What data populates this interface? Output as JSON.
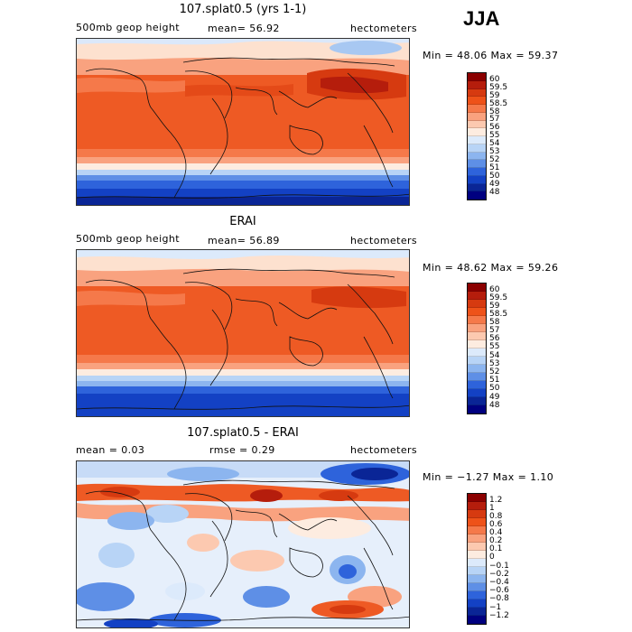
{
  "season": "JJA",
  "panels": [
    {
      "title": "107.splat0.5 (yrs 1-1)",
      "left_label": "500mb geop height",
      "center_label": "mean=   56.92",
      "units": "hectometers",
      "minmax": "Min =  48.06 Max =  59.37",
      "levels": [
        "60",
        "59.5",
        "59",
        "58.5",
        "58",
        "57",
        "56",
        "55",
        "54",
        "53",
        "52",
        "51",
        "50",
        "49",
        "48"
      ],
      "colors": [
        "#8b0000",
        "#b51d0c",
        "#d63a10",
        "#ee5219",
        "#f5794a",
        "#f9a27f",
        "#fcc9b0",
        "#fdece0",
        "#dceafb",
        "#b8d4f6",
        "#8cb5ef",
        "#5e8fe6",
        "#2e63db",
        "#1341c4",
        "#0a2596",
        "#000080"
      ]
    },
    {
      "title": "ERAI",
      "left_label": "500mb geop height",
      "center_label": "mean=   56.89",
      "units": "hectometers",
      "minmax": "Min =  48.62 Max =  59.26",
      "levels": [
        "60",
        "59.5",
        "59",
        "58.5",
        "58",
        "57",
        "56",
        "55",
        "54",
        "53",
        "52",
        "51",
        "50",
        "49",
        "48"
      ],
      "colors": [
        "#8b0000",
        "#b51d0c",
        "#d63a10",
        "#ee5219",
        "#f5794a",
        "#f9a27f",
        "#fcc9b0",
        "#fdece0",
        "#dceafb",
        "#b8d4f6",
        "#8cb5ef",
        "#5e8fe6",
        "#2e63db",
        "#1341c4",
        "#0a2596",
        "#000080"
      ]
    },
    {
      "title": "107.splat0.5 - ERAI",
      "left_label": "mean =    0.03",
      "center_label": "rmse =    0.29",
      "units": "hectometers",
      "minmax": "Min = −1.27 Max =   1.10",
      "levels": [
        "1.2",
        "1",
        "0.8",
        "0.6",
        "0.4",
        "0.2",
        "0.1",
        "0",
        "−0.1",
        "−0.2",
        "−0.4",
        "−0.6",
        "−0.8",
        "−1",
        "−1.2"
      ],
      "colors": [
        "#8b0000",
        "#b51d0c",
        "#d63a10",
        "#ee5219",
        "#f5794a",
        "#f9a27f",
        "#fcc9b0",
        "#fdece0",
        "#dceafb",
        "#b8d4f6",
        "#8cb5ef",
        "#5e8fe6",
        "#2e63db",
        "#1341c4",
        "#0a2596",
        "#000080"
      ]
    }
  ]
}
